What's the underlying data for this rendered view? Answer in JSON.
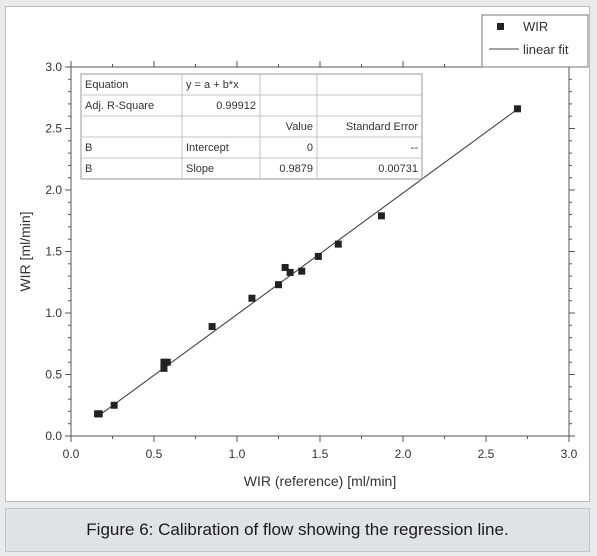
{
  "caption": "Figure 6: Calibration of flow showing the regression line.",
  "chart_data": {
    "type": "scatter",
    "title": "",
    "xlabel": "WIR (reference) [ml/min]",
    "ylabel": "WIR [ml/min]",
    "xlim": [
      0.0,
      3.0
    ],
    "ylim": [
      0.0,
      3.0
    ],
    "x_ticks": [
      "0.0",
      "0.5",
      "1.0",
      "1.5",
      "2.0",
      "2.5",
      "3.0"
    ],
    "y_ticks": [
      "0.0",
      "0.5",
      "1.0",
      "1.5",
      "2.0",
      "2.5",
      "3.0"
    ],
    "grid": false,
    "legend_position": "top-right",
    "legend": [
      {
        "label": "WIR",
        "marker": "square"
      },
      {
        "label": "linear fit",
        "marker": "line"
      }
    ],
    "series": [
      {
        "name": "WIR",
        "x": [
          0.16,
          0.17,
          0.26,
          0.56,
          0.56,
          0.58,
          0.85,
          1.09,
          1.25,
          1.29,
          1.32,
          1.39,
          1.49,
          1.61,
          1.87,
          2.69
        ],
        "y": [
          0.18,
          0.18,
          0.25,
          0.55,
          0.6,
          0.6,
          0.89,
          1.12,
          1.23,
          1.37,
          1.33,
          1.34,
          1.46,
          1.56,
          1.79,
          2.66
        ]
      }
    ],
    "fit": {
      "name": "linear fit",
      "intercept": 0,
      "slope": 0.9879,
      "x_range": [
        0.16,
        2.69
      ]
    },
    "fit_table": {
      "rows": [
        [
          "Equation",
          "y = a + b*x",
          "",
          ""
        ],
        [
          "Adj. R-Square",
          "0.99912",
          "",
          ""
        ],
        [
          "",
          "",
          "Value",
          "Standard Error"
        ],
        [
          "B",
          "Intercept",
          "0",
          "--"
        ],
        [
          "B",
          "Slope",
          "0.9879",
          "0.00731"
        ]
      ]
    }
  }
}
